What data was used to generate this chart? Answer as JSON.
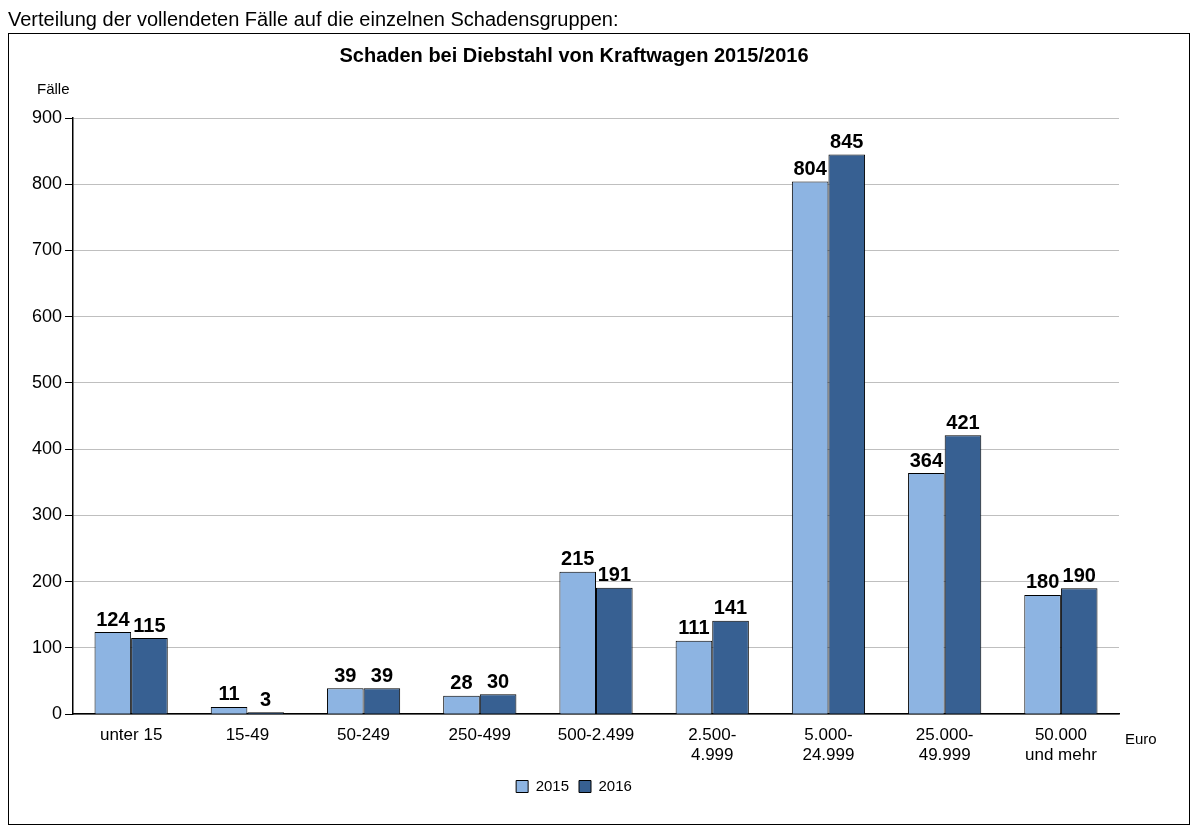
{
  "chart_data": {
    "type": "bar",
    "title": "Schaden bei Diebstahl von Kraftwagen 2015/2016",
    "ylabel": "Fälle",
    "xlabel": "Euro",
    "annotations": [
      "Verteilung der vollendeten Fälle auf die einzelnen Schadensgruppen:"
    ],
    "categories": [
      "unter 15",
      "15-49",
      "50-249",
      "250-499",
      "500-2.499",
      "2.500-\n4.999",
      "5.000-\n24.999",
      "25.000-\n49.999",
      "50.000\nund mehr"
    ],
    "series": [
      {
        "name": "2015",
        "color": "#8db4e2",
        "values": [
          124,
          11,
          39,
          28,
          215,
          111,
          804,
          364,
          180
        ]
      },
      {
        "name": "2016",
        "color": "#376092",
        "values": [
          115,
          3,
          39,
          30,
          191,
          141,
          845,
          421,
          190
        ]
      }
    ],
    "ylim": [
      0,
      900
    ],
    "yticks": [
      0,
      100,
      200,
      300,
      400,
      500,
      600,
      700,
      800,
      900
    ],
    "grid": "y",
    "legend": "bottom",
    "data_labels": true
  }
}
